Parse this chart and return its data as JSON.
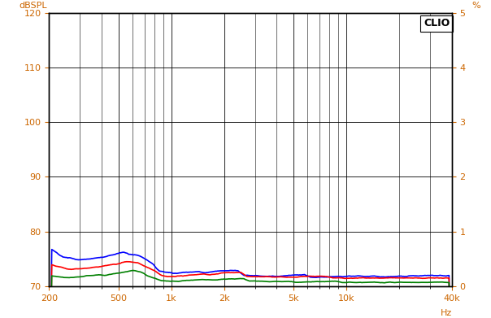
{
  "ylabel_left": "dBSPL",
  "ylabel_right": "%",
  "xlabel": "Hz",
  "clio_label": "CLIO",
  "ylim_left": [
    70,
    120
  ],
  "ylim_right": [
    0,
    5
  ],
  "yticks_left": [
    70,
    80,
    90,
    100,
    110,
    120
  ],
  "yticks_right": [
    0,
    1,
    2,
    3,
    4,
    5
  ],
  "xmin": 200,
  "xmax": 40000,
  "background_color": "#ffffff",
  "grid_color": "#000000",
  "label_color": "#cc6600",
  "line_colors": [
    "#0000ff",
    "#ff0000",
    "#008000"
  ],
  "line_width": 1.2,
  "x_major_ticks": [
    200,
    500,
    1000,
    2000,
    5000,
    10000,
    40000
  ],
  "x_major_labels": [
    "200",
    "500",
    "1k",
    "2k",
    "5k",
    "10k",
    "40k"
  ]
}
